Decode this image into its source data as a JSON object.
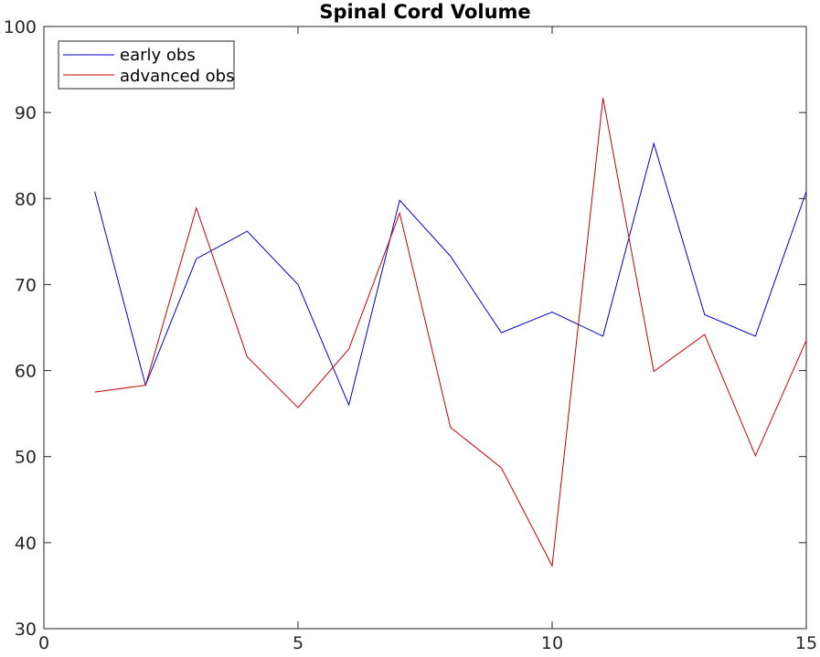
{
  "chart_data": {
    "type": "line",
    "title": "Spinal Cord Volume",
    "xlabel": "",
    "ylabel": "",
    "xlim": [
      0,
      15
    ],
    "ylim": [
      30,
      100
    ],
    "x_ticks": [
      0,
      5,
      10,
      15
    ],
    "y_ticks": [
      30,
      40,
      50,
      60,
      70,
      80,
      90,
      100
    ],
    "grid": false,
    "legend_position": "top-left",
    "x": [
      1,
      2,
      3,
      4,
      5,
      6,
      7,
      8,
      9,
      10,
      11,
      12,
      13,
      14,
      15
    ],
    "series": [
      {
        "name": "early obs",
        "color": "#0000c8",
        "values": [
          80.8,
          58.3,
          73.0,
          76.2,
          70.0,
          56.0,
          79.8,
          73.3,
          64.4,
          66.8,
          64.0,
          86.4,
          66.5,
          64.0,
          80.8
        ]
      },
      {
        "name": "advanced obs",
        "color": "#c80000",
        "values": [
          57.5,
          58.3,
          78.9,
          61.6,
          55.7,
          62.5,
          78.3,
          53.4,
          48.7,
          37.3,
          91.7,
          59.9,
          64.2,
          50.1,
          63.5
        ]
      }
    ]
  }
}
